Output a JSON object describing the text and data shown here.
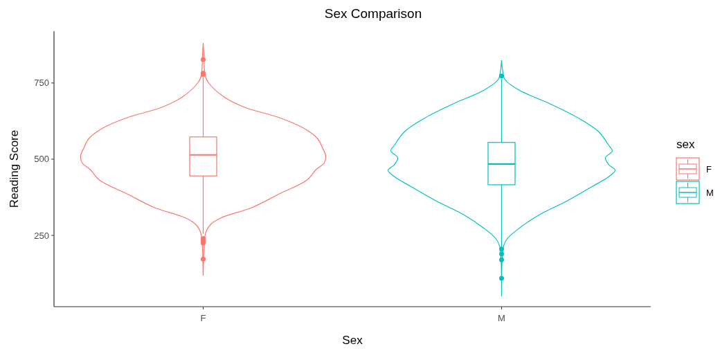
{
  "chart_data": {
    "type": "box",
    "title": "Sex Comparison",
    "xlabel": "Sex",
    "ylabel": "Reading Score",
    "legend_title": "sex",
    "legend": "right",
    "grid": false,
    "categories": [
      "F",
      "M"
    ],
    "ylim": [
      16,
      920
    ],
    "yticks": [
      250,
      500,
      750
    ],
    "series": [
      {
        "name": "F",
        "color": "#f8766d",
        "boxes": [
          {
            "low": 255,
            "q1": 445,
            "median": 514,
            "q3": 573,
            "high": 768,
            "outliers": [
              827,
              782,
              778,
              240,
              232,
              225,
              172
            ]
          },
          null
        ]
      },
      {
        "name": "M",
        "color": "#00bfc4",
        "boxes": [
          null,
          {
            "low": 212,
            "q1": 416,
            "median": 484,
            "q3": 555,
            "high": 764,
            "outliers": [
              773,
              205,
              189,
              170,
              109
            ]
          }
        ]
      }
    ]
  }
}
